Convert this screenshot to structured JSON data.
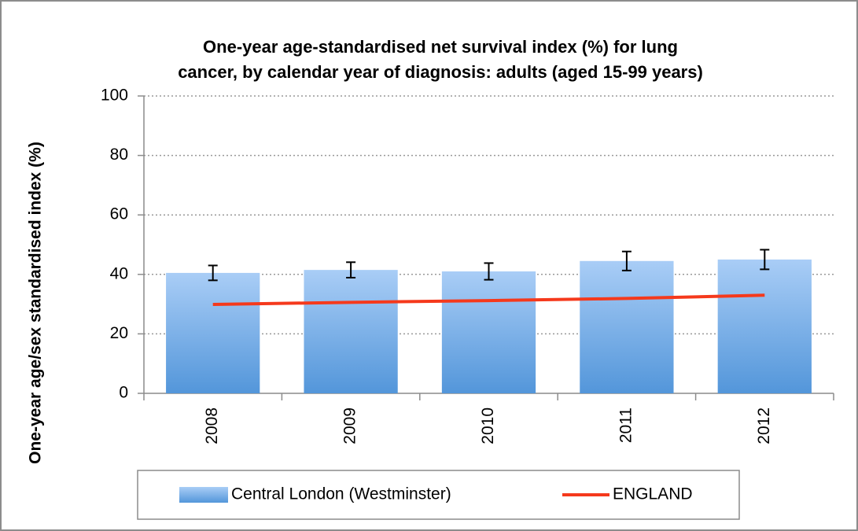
{
  "chart_data": {
    "type": "bar",
    "title": [
      "One-year age-standardised net survival index (%) for lung",
      "cancer, by calendar year of diagnosis: adults (aged 15-99 years)"
    ],
    "y_label": "One-year age/sex standardised index (%)",
    "categories": [
      "2008",
      "2009",
      "2010",
      "2011",
      "2012"
    ],
    "series": [
      {
        "name": "Central London (Westminster)",
        "type": "bar",
        "color": "#5b9bd9",
        "values": [
          40.5,
          41.5,
          41,
          44.5,
          45
        ],
        "errors": [
          2.5,
          2.6,
          2.8,
          3.2,
          3.3
        ]
      },
      {
        "name": "ENGLAND",
        "type": "line",
        "color": "#f5391c",
        "values": [
          29.9,
          30.6,
          31.2,
          31.9,
          33.0
        ]
      }
    ],
    "ylim": [
      0,
      100
    ],
    "yticks": [
      0,
      20,
      40,
      60,
      80,
      100
    ],
    "grid": true,
    "legend": "bottom"
  }
}
